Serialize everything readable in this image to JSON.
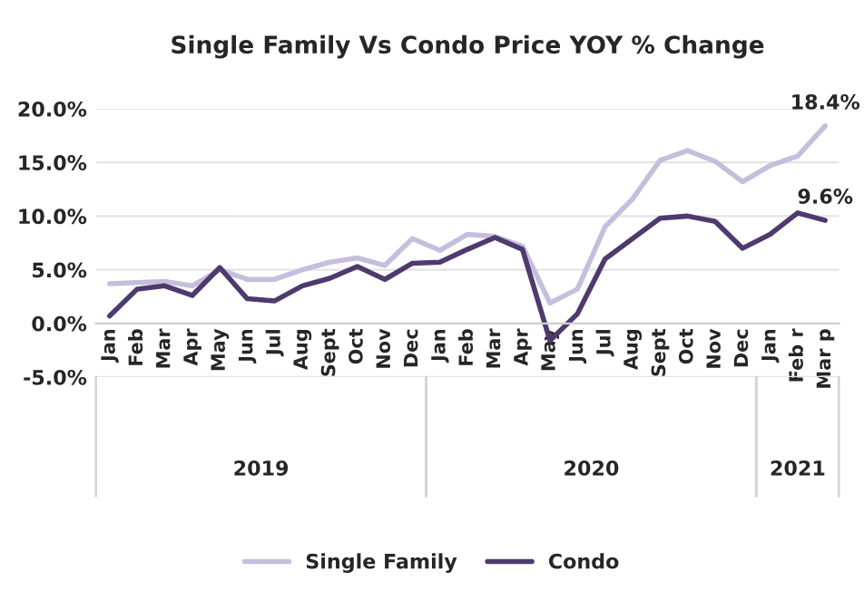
{
  "chart_data": {
    "type": "line",
    "title": "Single Family Vs Condo Price YOY % Change",
    "categories": [
      "Jan",
      "Feb",
      "Mar",
      "Apr",
      "May",
      "Jun",
      "Jul",
      "Aug",
      "Sept",
      "Oct",
      "Nov",
      "Dec",
      "Jan",
      "Feb",
      "Mar",
      "Apr",
      "May",
      "Jun",
      "Jul",
      "Aug",
      "Sept",
      "Oct",
      "Nov",
      "Dec",
      "Jan",
      "Feb r",
      "Mar p"
    ],
    "series": [
      {
        "name": "Single Family",
        "color": "#c5bedd",
        "values": [
          3.7,
          3.8,
          3.9,
          3.5,
          5.0,
          4.1,
          4.1,
          5.0,
          5.7,
          6.1,
          5.4,
          7.9,
          6.8,
          8.3,
          8.1,
          7.2,
          1.9,
          3.2,
          9.0,
          11.6,
          15.2,
          16.1,
          15.1,
          13.2,
          14.7,
          15.6,
          18.4
        ],
        "value_labels": [
          null,
          null,
          null,
          null,
          null,
          null,
          null,
          null,
          null,
          null,
          null,
          null,
          null,
          null,
          null,
          null,
          null,
          null,
          null,
          null,
          null,
          null,
          null,
          null,
          null,
          null,
          "18.4%"
        ]
      },
      {
        "name": "Condo",
        "color": "#4e3a6e",
        "values": [
          0.7,
          3.2,
          3.5,
          2.6,
          5.2,
          2.3,
          2.1,
          3.5,
          4.2,
          5.3,
          4.1,
          5.6,
          5.7,
          6.9,
          8.0,
          6.9,
          -1.6,
          0.9,
          6.0,
          7.9,
          9.8,
          10.0,
          9.5,
          7.0,
          8.3,
          10.3,
          9.6
        ],
        "value_labels": [
          null,
          null,
          null,
          null,
          null,
          null,
          null,
          null,
          null,
          null,
          null,
          null,
          null,
          null,
          null,
          null,
          null,
          null,
          null,
          null,
          null,
          null,
          null,
          null,
          null,
          null,
          "9.6%"
        ]
      }
    ],
    "ylim": [
      -5,
      20
    ],
    "yticks": [
      {
        "value": -5,
        "label": "-5.0%"
      },
      {
        "value": 0,
        "label": "0.0%"
      },
      {
        "value": 5,
        "label": "5.0%"
      },
      {
        "value": 10,
        "label": "10.0%"
      },
      {
        "value": 15,
        "label": "15.0%"
      },
      {
        "value": 20,
        "label": "20.0%"
      }
    ],
    "annotations": [
      "2019",
      "2020",
      "2021"
    ],
    "grid": "y",
    "legend": "bottom",
    "marker": "none",
    "line_style": "solid"
  }
}
